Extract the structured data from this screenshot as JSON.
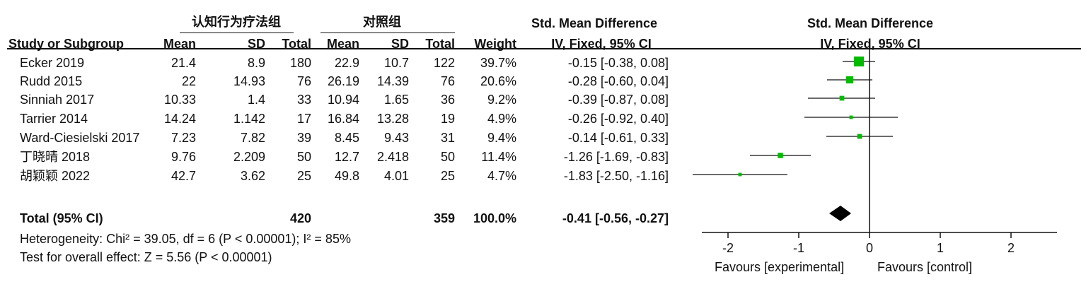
{
  "header": {
    "group1": "认知行为疗法组",
    "group2": "对照组",
    "smd_title": "Std. Mean Difference",
    "smd_method": "IV, Fixed, 95% CI",
    "plot_title": "Std. Mean Difference",
    "plot_method": "IV, Fixed, 95% CI",
    "col_study": "Study or Subgroup",
    "col_mean1": "Mean",
    "col_sd1": "SD",
    "col_total1": "Total",
    "col_mean2": "Mean",
    "col_sd2": "SD",
    "col_total2": "Total",
    "col_weight": "Weight"
  },
  "studies": [
    {
      "name": "Ecker 2019",
      "mean1": "21.4",
      "sd1": "8.9",
      "total1": "180",
      "mean2": "22.9",
      "sd2": "10.7",
      "total2": "122",
      "weight": "39.7%",
      "ci_text": "-0.15 [-0.38, 0.08]"
    },
    {
      "name": "Rudd 2015",
      "mean1": "22",
      "sd1": "14.93",
      "total1": "76",
      "mean2": "26.19",
      "sd2": "14.39",
      "total2": "76",
      "weight": "20.6%",
      "ci_text": "-0.28 [-0.60, 0.04]"
    },
    {
      "name": "Sinniah 2017",
      "mean1": "10.33",
      "sd1": "1.4",
      "total1": "33",
      "mean2": "10.94",
      "sd2": "1.65",
      "total2": "36",
      "weight": "9.2%",
      "ci_text": "-0.39 [-0.87, 0.08]"
    },
    {
      "name": "Tarrier 2014",
      "mean1": "14.24",
      "sd1": "1.142",
      "total1": "17",
      "mean2": "16.84",
      "sd2": "13.28",
      "total2": "19",
      "weight": "4.9%",
      "ci_text": "-0.26 [-0.92, 0.40]"
    },
    {
      "name": "Ward-Ciesielski 2017",
      "mean1": "7.23",
      "sd1": "7.82",
      "total1": "39",
      "mean2": "8.45",
      "sd2": "9.43",
      "total2": "31",
      "weight": "9.4%",
      "ci_text": "-0.14 [-0.61, 0.33]"
    },
    {
      "name": "丁晓晴 2018",
      "mean1": "9.76",
      "sd1": "2.209",
      "total1": "50",
      "mean2": "12.7",
      "sd2": "2.418",
      "total2": "50",
      "weight": "11.4%",
      "ci_text": "-1.26 [-1.69, -0.83]"
    },
    {
      "name": "胡颖颖 2022",
      "mean1": "42.7",
      "sd1": "3.62",
      "total1": "25",
      "mean2": "49.8",
      "sd2": "4.01",
      "total2": "25",
      "weight": "4.7%",
      "ci_text": "-1.83 [-2.50, -1.16]"
    }
  ],
  "total": {
    "label": "Total (95% CI)",
    "total1": "420",
    "total2": "359",
    "weight": "100.0%",
    "ci_text": "-0.41 [-0.56, -0.27]"
  },
  "footer": {
    "heterogeneity": "Heterogeneity: Chi² = 39.05, df = 6 (P < 0.00001); I² = 85%",
    "overall": "Test for overall effect: Z = 5.56 (P < 0.00001)"
  },
  "axis": {
    "favours_left": "Favours [experimental]",
    "favours_right": "Favours [control]"
  },
  "colors": {
    "marker": "#00bb00",
    "diamond": "#000000",
    "line": "#111111"
  },
  "chart_data": {
    "type": "forest",
    "title": "Std. Mean Difference",
    "subtitle": "IV, Fixed, 95% CI",
    "xlim": [
      -2.5,
      2.5
    ],
    "xticks": [
      -2,
      -1,
      0,
      1,
      2
    ],
    "tick_labels": [
      "-2",
      "-1",
      "0",
      "1",
      "2"
    ],
    "studies": [
      {
        "name": "Ecker 2019",
        "est": -0.15,
        "lo": -0.38,
        "hi": 0.08,
        "weight": 39.7
      },
      {
        "name": "Rudd 2015",
        "est": -0.28,
        "lo": -0.6,
        "hi": 0.04,
        "weight": 20.6
      },
      {
        "name": "Sinniah 2017",
        "est": -0.39,
        "lo": -0.87,
        "hi": 0.08,
        "weight": 9.2
      },
      {
        "name": "Tarrier 2014",
        "est": -0.26,
        "lo": -0.92,
        "hi": 0.4,
        "weight": 4.9
      },
      {
        "name": "Ward-Ciesielski 2017",
        "est": -0.14,
        "lo": -0.61,
        "hi": 0.33,
        "weight": 9.4
      },
      {
        "name": "丁晓晴 2018",
        "est": -1.26,
        "lo": -1.69,
        "hi": -0.83,
        "weight": 11.4
      },
      {
        "name": "胡颖颖 2022",
        "est": -1.83,
        "lo": -2.5,
        "hi": -1.16,
        "weight": 4.7
      }
    ],
    "pooled": {
      "est": -0.41,
      "lo": -0.56,
      "hi": -0.27
    }
  }
}
